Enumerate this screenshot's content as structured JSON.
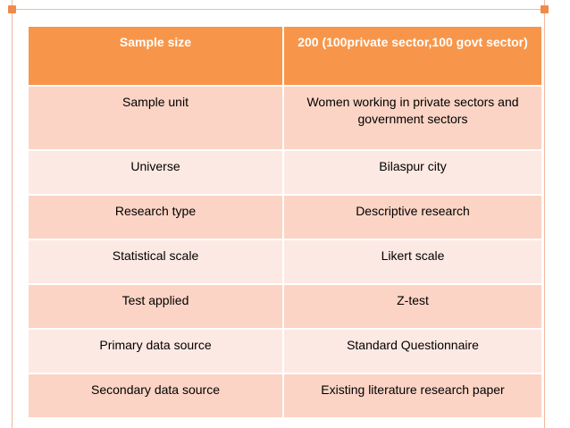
{
  "table": {
    "header": {
      "label": "Sample size",
      "value": "200 (100private sector,100 govt sector)"
    },
    "rows": [
      {
        "label": "Sample unit",
        "value": "Women working in private sectors and government sectors"
      },
      {
        "label": "Universe",
        "value": "Bilaspur city"
      },
      {
        "label": "Research type",
        "value": "Descriptive research"
      },
      {
        "label": "Statistical scale",
        "value": "Likert scale"
      },
      {
        "label": "Test applied",
        "value": "Z-test"
      },
      {
        "label": "Primary data source",
        "value": "Standard Questionnaire"
      },
      {
        "label": "Secondary data source",
        "value": "Existing literature research paper"
      }
    ]
  },
  "colors": {
    "header_bg": "#f7964a",
    "row_dark_bg": "#fbd4c5",
    "row_light_bg": "#fde9e3",
    "frame_line": "#f2b89a",
    "corner_mark": "#f08a4b"
  }
}
